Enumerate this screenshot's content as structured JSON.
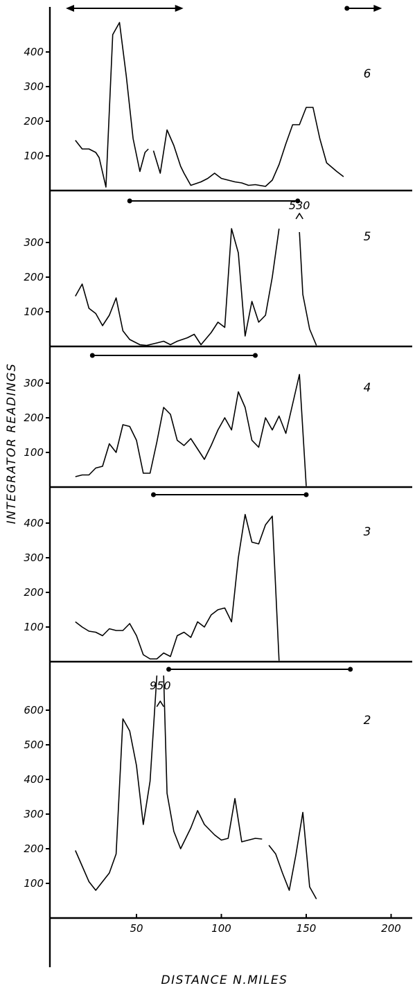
{
  "chart_data": {
    "type": "line",
    "ylabel": "INTEGRATOR READINGS",
    "xlabel": "DISTANCE N.MILES",
    "x_ticks": [
      50,
      100,
      150,
      200
    ],
    "xlim": [
      10,
      210
    ],
    "panels": [
      {
        "name": "6",
        "y_ticks": [
          100,
          200,
          300,
          400
        ],
        "ylim": [
          0,
          540
        ],
        "range_bars": [
          {
            "x": [
              10,
              76
            ],
            "arrow_left": true,
            "arrow_right": true
          },
          {
            "x": [
              174,
              193
            ],
            "arrow_left": false,
            "arrow_right": true
          }
        ],
        "segments": [
          [
            [
              14,
              145
            ],
            [
              18,
              120
            ],
            [
              22,
              120
            ],
            [
              26,
              110
            ],
            [
              28,
              95
            ],
            [
              32,
              10
            ],
            [
              36,
              450
            ],
            [
              40,
              485
            ],
            [
              44,
              330
            ],
            [
              48,
              150
            ],
            [
              52,
              55
            ],
            [
              55,
              110
            ],
            [
              57,
              120
            ]
          ],
          [
            [
              60,
              115
            ],
            [
              64,
              50
            ],
            [
              68,
              175
            ],
            [
              72,
              130
            ],
            [
              76,
              70
            ],
            [
              78,
              50
            ],
            [
              82,
              15
            ],
            [
              88,
              25
            ],
            [
              92,
              35
            ],
            [
              96,
              50
            ],
            [
              100,
              35
            ],
            [
              104,
              30
            ],
            [
              108,
              25
            ],
            [
              112,
              22
            ],
            [
              116,
              15
            ],
            [
              120,
              17
            ],
            [
              126,
              12
            ],
            [
              130,
              30
            ],
            [
              134,
              75
            ],
            [
              138,
              135
            ],
            [
              142,
              190
            ],
            [
              146,
              190
            ],
            [
              150,
              240
            ],
            [
              154,
              240
            ],
            [
              158,
              150
            ],
            [
              162,
              80
            ],
            [
              168,
              55
            ],
            [
              172,
              40
            ]
          ]
        ],
        "annotations": [
          {
            "text": "530",
            "x": 146,
            "y": 540
          }
        ]
      },
      {
        "name": "5",
        "y_ticks": [
          100,
          200,
          300
        ],
        "ylim": [
          0,
          430
        ],
        "range_bars": [
          {
            "x": [
              46,
              145
            ],
            "arrow_left": false,
            "arrow_right": false
          }
        ],
        "segments": [
          [
            [
              14,
              145
            ],
            [
              18,
              180
            ],
            [
              22,
              110
            ],
            [
              26,
              95
            ],
            [
              30,
              60
            ],
            [
              34,
              90
            ],
            [
              38,
              140
            ],
            [
              42,
              45
            ],
            [
              46,
              20
            ],
            [
              52,
              5
            ],
            [
              56,
              3
            ],
            [
              62,
              10
            ],
            [
              66,
              15
            ],
            [
              70,
              5
            ],
            [
              74,
              15
            ],
            [
              80,
              25
            ],
            [
              84,
              35
            ],
            [
              88,
              5
            ],
            [
              94,
              40
            ],
            [
              98,
              70
            ],
            [
              102,
              55
            ],
            [
              106,
              340
            ],
            [
              110,
              270
            ],
            [
              114,
              30
            ],
            [
              118,
              130
            ],
            [
              122,
              70
            ],
            [
              126,
              90
            ],
            [
              130,
              200
            ],
            [
              134,
              340
            ]
          ],
          [
            [
              146,
              330
            ],
            [
              148,
              150
            ],
            [
              152,
              50
            ],
            [
              156,
              3
            ]
          ]
        ],
        "annotations": []
      },
      {
        "name": "4",
        "y_ticks": [
          100,
          200,
          300
        ],
        "ylim": [
          0,
          380
        ],
        "range_bars": [
          {
            "x": [
              24,
              120
            ],
            "arrow_left": false,
            "arrow_right": false
          }
        ],
        "segments": [
          [
            [
              14,
              30
            ],
            [
              18,
              35
            ],
            [
              22,
              35
            ],
            [
              26,
              55
            ],
            [
              30,
              60
            ],
            [
              34,
              125
            ],
            [
              38,
              100
            ],
            [
              42,
              180
            ],
            [
              46,
              175
            ],
            [
              50,
              135
            ],
            [
              54,
              40
            ],
            [
              58,
              40
            ],
            [
              62,
              130
            ],
            [
              66,
              230
            ],
            [
              70,
              210
            ],
            [
              74,
              135
            ],
            [
              78,
              120
            ],
            [
              82,
              140
            ],
            [
              86,
              110
            ],
            [
              90,
              80
            ],
            [
              94,
              120
            ],
            [
              98,
              165
            ],
            [
              102,
              200
            ],
            [
              106,
              165
            ],
            [
              110,
              275
            ],
            [
              114,
              230
            ],
            [
              118,
              135
            ],
            [
              122,
              115
            ],
            [
              126,
              200
            ],
            [
              130,
              165
            ],
            [
              134,
              205
            ],
            [
              138,
              155
            ],
            [
              142,
              240
            ],
            [
              146,
              325
            ],
            [
              150,
              3
            ]
          ]
        ],
        "annotations": []
      },
      {
        "name": "3",
        "y_ticks": [
          100,
          200,
          300,
          400
        ],
        "ylim": [
          0,
          480
        ],
        "range_bars": [
          {
            "x": [
              60,
              150
            ],
            "arrow_left": false,
            "arrow_right": false
          }
        ],
        "segments": [
          [
            [
              14,
              115
            ],
            [
              18,
              100
            ],
            [
              22,
              88
            ],
            [
              26,
              85
            ],
            [
              30,
              75
            ],
            [
              34,
              95
            ],
            [
              38,
              90
            ],
            [
              42,
              90
            ],
            [
              46,
              110
            ],
            [
              50,
              75
            ],
            [
              54,
              20
            ],
            [
              58,
              8
            ],
            [
              62,
              8
            ],
            [
              66,
              25
            ],
            [
              70,
              15
            ],
            [
              74,
              75
            ],
            [
              78,
              85
            ],
            [
              82,
              70
            ],
            [
              86,
              115
            ],
            [
              90,
              100
            ],
            [
              94,
              135
            ],
            [
              98,
              150
            ],
            [
              102,
              155
            ],
            [
              106,
              115
            ],
            [
              110,
              300
            ],
            [
              114,
              425
            ],
            [
              118,
              345
            ],
            [
              122,
              340
            ],
            [
              126,
              395
            ],
            [
              130,
              420
            ],
            [
              134,
              3
            ]
          ]
        ],
        "annotations": []
      },
      {
        "name": "2",
        "y_ticks": [
          100,
          200,
          300,
          400,
          500,
          600
        ],
        "ylim": [
          0,
          800
        ],
        "range_bars": [
          {
            "x": [
              69,
              176
            ],
            "arrow_left": false,
            "arrow_right": false
          }
        ],
        "segments": [
          [
            [
              14,
              195
            ],
            [
              18,
              150
            ],
            [
              22,
              105
            ],
            [
              26,
              80
            ],
            [
              30,
              105
            ],
            [
              34,
              130
            ],
            [
              38,
              185
            ],
            [
              42,
              575
            ],
            [
              46,
              540
            ],
            [
              50,
              440
            ],
            [
              54,
              270
            ],
            [
              58,
              395
            ],
            [
              62,
              700
            ]
          ],
          [
            [
              66,
              700
            ],
            [
              68,
              360
            ],
            [
              72,
              250
            ],
            [
              76,
              200
            ],
            [
              82,
              260
            ],
            [
              86,
              310
            ],
            [
              90,
              270
            ],
            [
              96,
              240
            ],
            [
              100,
              225
            ],
            [
              104,
              230
            ],
            [
              108,
              345
            ],
            [
              112,
              220
            ],
            [
              116,
              225
            ],
            [
              120,
              230
            ],
            [
              124,
              228
            ]
          ],
          [
            [
              128,
              210
            ],
            [
              132,
              185
            ],
            [
              136,
              130
            ],
            [
              140,
              80
            ],
            [
              144,
              185
            ],
            [
              148,
              305
            ],
            [
              152,
              90
            ],
            [
              156,
              55
            ]
          ]
        ],
        "annotations": [
          {
            "text": "950",
            "x": 64,
            "y": 750
          }
        ]
      }
    ]
  }
}
